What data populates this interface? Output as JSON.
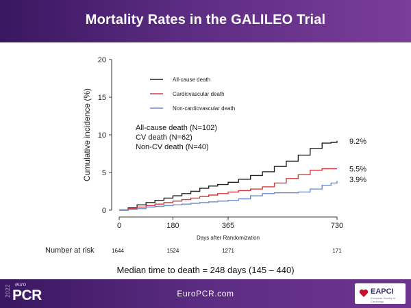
{
  "slide": {
    "title": "Mortality Rates in the GALILEO Trial",
    "median_text": "Median time to death = 248 days (145 – 440)",
    "footer_url": "EuroPCR.com",
    "logo": {
      "year": "2022",
      "euro": "euro",
      "pcr": "PCR",
      "partner": "EAPCI",
      "partner_sub": "European Society of Cardiology"
    }
  },
  "colors": {
    "header": "#4a2070",
    "all_cause": "#222222",
    "cv": "#d03a3a",
    "non_cv": "#6c8cc6"
  },
  "chart_data": {
    "type": "line",
    "title": "",
    "xlabel": "Days after Randomization",
    "ylabel": "Cumulative incidence (%)",
    "xlim": [
      0,
      730
    ],
    "ylim": [
      0,
      20
    ],
    "xticks": [
      0,
      180,
      365,
      730
    ],
    "yticks": [
      0,
      5,
      10,
      15,
      20
    ],
    "legend": [
      "All-cause death",
      "Cardiovascular death",
      "Non-cardiovascular death"
    ],
    "legend_position": "top-left",
    "annotation_lines": [
      "All-cause death (N=102)",
      "CV death (N=62)",
      "Non-CV death (N=40)"
    ],
    "end_labels": [
      "9.2%",
      "5.5%",
      "3.9%"
    ],
    "series": [
      {
        "name": "All-cause death",
        "x": [
          0,
          30,
          60,
          90,
          120,
          150,
          180,
          210,
          240,
          270,
          300,
          330,
          365,
          400,
          440,
          480,
          520,
          560,
          600,
          640,
          680,
          710,
          730
        ],
        "y": [
          0,
          0.3,
          0.7,
          1.0,
          1.3,
          1.6,
          1.9,
          2.2,
          2.5,
          2.9,
          3.2,
          3.4,
          3.7,
          4.1,
          4.6,
          5.1,
          5.8,
          6.5,
          7.3,
          8.2,
          8.9,
          9.0,
          9.2
        ]
      },
      {
        "name": "Cardiovascular death",
        "x": [
          0,
          30,
          60,
          90,
          120,
          150,
          180,
          210,
          240,
          270,
          300,
          330,
          365,
          400,
          440,
          480,
          520,
          560,
          600,
          640,
          680,
          710,
          730
        ],
        "y": [
          0,
          0.2,
          0.4,
          0.6,
          0.8,
          1.0,
          1.2,
          1.4,
          1.6,
          1.8,
          2.0,
          2.2,
          2.4,
          2.6,
          2.8,
          3.1,
          3.6,
          4.2,
          4.7,
          5.3,
          5.5,
          5.5,
          5.5
        ]
      },
      {
        "name": "Non-cardiovascular death",
        "x": [
          0,
          30,
          60,
          90,
          120,
          150,
          180,
          210,
          240,
          270,
          300,
          330,
          365,
          400,
          440,
          480,
          520,
          560,
          600,
          640,
          680,
          710,
          730
        ],
        "y": [
          0,
          0.1,
          0.2,
          0.4,
          0.5,
          0.6,
          0.7,
          0.8,
          0.9,
          1.0,
          1.1,
          1.2,
          1.3,
          1.5,
          1.9,
          2.2,
          2.3,
          2.3,
          2.4,
          2.8,
          3.3,
          3.6,
          3.9
        ]
      }
    ],
    "risk_table": {
      "label": "Number at risk",
      "days": [
        0,
        180,
        365,
        730
      ],
      "values": [
        "1644",
        "1524",
        "1271",
        "171"
      ]
    }
  }
}
